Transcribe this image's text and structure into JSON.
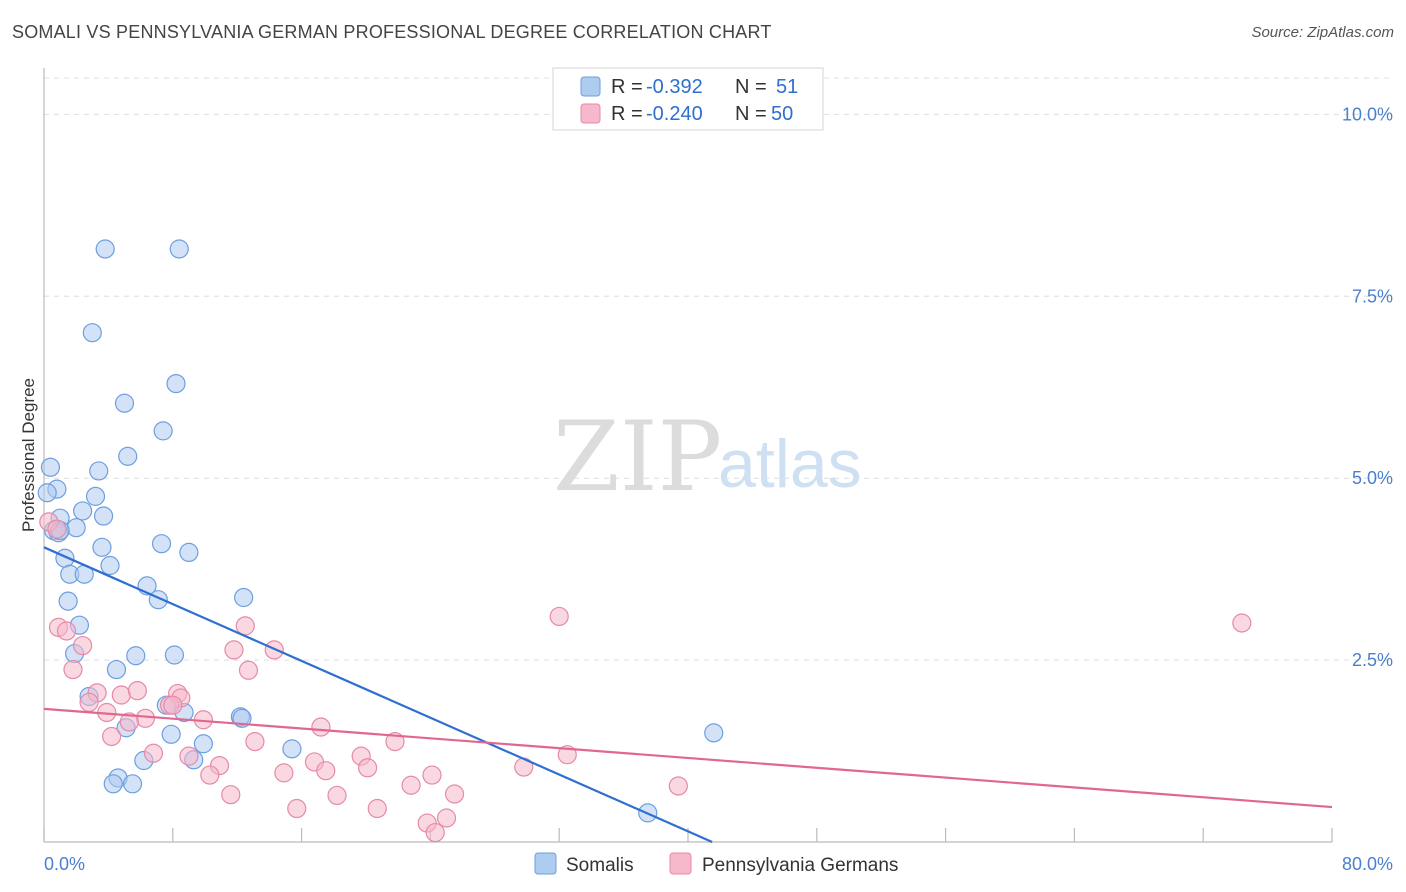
{
  "header": {
    "title": "SOMALI VS PENNSYLVANIA GERMAN PROFESSIONAL DEGREE CORRELATION CHART",
    "source": "Source: ZipAtlas.com"
  },
  "watermark": {
    "zip": "ZIP",
    "atlas": "atlas"
  },
  "legend": {
    "rows": [
      {
        "r_label": "R =",
        "r_value": "-0.392",
        "n_label": "N =",
        "n_value": "51",
        "color": "#aecbf0"
      },
      {
        "r_label": "R =",
        "r_value": "-0.240",
        "n_label": "N =",
        "n_value": "50",
        "color": "#f6b8cb"
      }
    ]
  },
  "bottom_legend": {
    "series1": "Somalis",
    "series2": "Pennsylvania Germans"
  },
  "colors": {
    "blue_fill": "#aecbf0",
    "blue_stroke": "#6d9fe0",
    "blue_line": "#2e6fd0",
    "pink_fill": "#f6b8cb",
    "pink_stroke": "#e58aa8",
    "pink_line": "#e0678f",
    "tick": "#4a7fd0",
    "grid": "#dddddd"
  },
  "chart_data": {
    "type": "scatter",
    "title": "SOMALI VS PENNSYLVANIA GERMAN PROFESSIONAL DEGREE CORRELATION CHART",
    "xlabel": "",
    "ylabel": "Professional Degree",
    "xlim": [
      0,
      80
    ],
    "ylim": [
      0,
      10.5
    ],
    "x_ticks": [
      "0.0%",
      "80.0%"
    ],
    "y_ticks": [
      {
        "value": 2.5,
        "label": "2.5%"
      },
      {
        "value": 5.0,
        "label": "5.0%"
      },
      {
        "value": 7.5,
        "label": "7.5%"
      },
      {
        "value": 10.0,
        "label": "10.0%"
      }
    ],
    "grid": true,
    "legend_position": "top-center",
    "series": [
      {
        "name": "Somalis",
        "r": -0.392,
        "n": 51,
        "trend": {
          "x": [
            0,
            41.5
          ],
          "y": [
            4.05,
            0.0
          ]
        },
        "points": [
          [
            3.8,
            8.15
          ],
          [
            8.4,
            8.15
          ],
          [
            3.0,
            7.0
          ],
          [
            8.2,
            6.3
          ],
          [
            5.0,
            6.03
          ],
          [
            7.4,
            5.65
          ],
          [
            5.2,
            5.3
          ],
          [
            0.4,
            5.15
          ],
          [
            3.4,
            5.1
          ],
          [
            0.8,
            4.85
          ],
          [
            3.2,
            4.75
          ],
          [
            0.2,
            4.8
          ],
          [
            2.4,
            4.55
          ],
          [
            1.0,
            4.45
          ],
          [
            3.7,
            4.48
          ],
          [
            2.0,
            4.32
          ],
          [
            0.6,
            4.28
          ],
          [
            0.9,
            4.25
          ],
          [
            7.3,
            4.1
          ],
          [
            3.6,
            4.05
          ],
          [
            9.0,
            3.98
          ],
          [
            1.3,
            3.9
          ],
          [
            4.1,
            3.8
          ],
          [
            1.6,
            3.68
          ],
          [
            2.5,
            3.68
          ],
          [
            6.4,
            3.52
          ],
          [
            7.1,
            3.33
          ],
          [
            12.4,
            3.36
          ],
          [
            1.5,
            3.31
          ],
          [
            2.2,
            2.98
          ],
          [
            8.1,
            2.57
          ],
          [
            5.7,
            2.56
          ],
          [
            1.9,
            2.59
          ],
          [
            4.5,
            2.37
          ],
          [
            2.8,
            2.0
          ],
          [
            7.6,
            1.88
          ],
          [
            8.7,
            1.78
          ],
          [
            12.2,
            1.72
          ],
          [
            12.3,
            1.7
          ],
          [
            5.1,
            1.57
          ],
          [
            7.9,
            1.48
          ],
          [
            9.9,
            1.35
          ],
          [
            15.4,
            1.28
          ],
          [
            9.3,
            1.13
          ],
          [
            6.2,
            1.12
          ],
          [
            4.6,
            0.88
          ],
          [
            4.3,
            0.8
          ],
          [
            5.5,
            0.8
          ],
          [
            41.6,
            1.5
          ],
          [
            37.5,
            0.4
          ],
          [
            1.0,
            4.28
          ]
        ]
      },
      {
        "name": "Pennsylvania Germans",
        "r": -0.24,
        "n": 50,
        "trend": {
          "x": [
            0,
            80
          ],
          "y": [
            1.83,
            0.48
          ]
        },
        "points": [
          [
            0.3,
            4.4
          ],
          [
            0.8,
            4.3
          ],
          [
            0.9,
            2.95
          ],
          [
            1.4,
            2.9
          ],
          [
            2.4,
            2.7
          ],
          [
            1.8,
            2.37
          ],
          [
            11.8,
            2.64
          ],
          [
            14.3,
            2.64
          ],
          [
            12.5,
            2.97
          ],
          [
            12.7,
            2.36
          ],
          [
            32.0,
            3.1
          ],
          [
            74.4,
            3.01
          ],
          [
            3.3,
            2.05
          ],
          [
            4.8,
            2.02
          ],
          [
            5.8,
            2.08
          ],
          [
            8.3,
            2.04
          ],
          [
            8.5,
            1.98
          ],
          [
            2.8,
            1.92
          ],
          [
            7.8,
            1.88
          ],
          [
            3.9,
            1.78
          ],
          [
            6.3,
            1.7
          ],
          [
            5.3,
            1.65
          ],
          [
            9.9,
            1.68
          ],
          [
            17.2,
            1.58
          ],
          [
            4.2,
            1.45
          ],
          [
            13.1,
            1.38
          ],
          [
            21.8,
            1.38
          ],
          [
            6.8,
            1.22
          ],
          [
            9.0,
            1.18
          ],
          [
            19.7,
            1.18
          ],
          [
            32.5,
            1.2
          ],
          [
            10.9,
            1.05
          ],
          [
            16.8,
            1.1
          ],
          [
            20.1,
            1.02
          ],
          [
            29.8,
            1.03
          ],
          [
            14.9,
            0.95
          ],
          [
            17.5,
            0.98
          ],
          [
            10.3,
            0.92
          ],
          [
            24.1,
            0.92
          ],
          [
            22.8,
            0.78
          ],
          [
            39.4,
            0.77
          ],
          [
            11.6,
            0.65
          ],
          [
            18.2,
            0.64
          ],
          [
            25.5,
            0.66
          ],
          [
            15.7,
            0.46
          ],
          [
            20.7,
            0.46
          ],
          [
            23.8,
            0.26
          ],
          [
            25.0,
            0.33
          ],
          [
            24.3,
            0.13
          ],
          [
            8.0,
            1.88
          ]
        ]
      }
    ]
  }
}
